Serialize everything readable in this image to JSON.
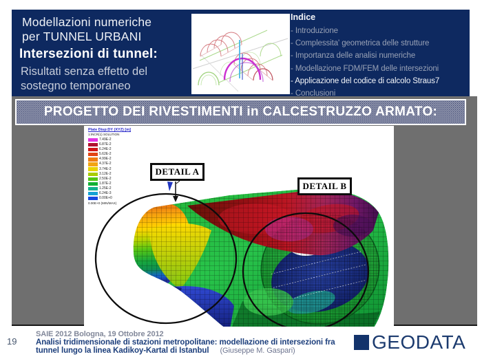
{
  "header": {
    "title1": "Modellazioni numeriche",
    "title2": "per TUNNEL URBANI",
    "subtitle": "Intersezioni di tunnel:",
    "note1": "Risultati senza effetto del",
    "note2": "sostegno temporaneo"
  },
  "indice": {
    "title": "Indice",
    "items": [
      "- Introduzione",
      "- Complessita' geometrica delle strutture",
      "- Importanza delle analisi numeriche",
      "- Modellazione FDM/FEM delle intersezioni",
      "- Applicazione del codice di calcolo Straus7",
      "- Conclusioni"
    ],
    "active_index": 4
  },
  "banner": {
    "text": "PROGETTO DEI RIVESTIMENTI in CALCESTRUZZO ARMATO:"
  },
  "figure": {
    "detail_a": "DETAIL A",
    "detail_b": "DETAIL B",
    "legend": {
      "title": "Plate Disp:DY (XYZ) [m]",
      "subtitle": "1:INCR(1) SOLUTION",
      "entries": [
        {
          "color": "#e233e2",
          "value": "7.49E-2"
        },
        {
          "color": "#b01030",
          "value": "6.87E-2"
        },
        {
          "color": "#d01418",
          "value": "6.24E-2"
        },
        {
          "color": "#e24414",
          "value": "5.62E-2"
        },
        {
          "color": "#ef7d12",
          "value": "4.99E-2"
        },
        {
          "color": "#f2a412",
          "value": "4.37E-2"
        },
        {
          "color": "#e8d400",
          "value": "3.74E-2"
        },
        {
          "color": "#a8cc00",
          "value": "3.12E-2"
        },
        {
          "color": "#52c614",
          "value": "2.50E-2"
        },
        {
          "color": "#12b034",
          "value": "1.87E-2"
        },
        {
          "color": "#12b18e",
          "value": "1.25E-2"
        },
        {
          "color": "#14a2d4",
          "value": "6.24E-3"
        },
        {
          "color": "#1648e0",
          "value": "0.00E+0"
        }
      ],
      "footnote": "0.00E+0 (MIN/MAX)"
    }
  },
  "footer": {
    "page_number": "19",
    "event": "SAIE 2012 Bologna, 19 Ottobre 2012",
    "title_line1": "Analisi tridimensionale di stazioni metropolitane: modellazione di intersezioni fra",
    "title_line2": "tunnel lungo la linea Kadikoy-Kartal di Istanbul",
    "author": "(Giuseppe M. Gaspari)",
    "logo": "GEODATA"
  },
  "colors": {
    "header_navy": "#0e2960",
    "background_gray": "#6f6f6f",
    "banner_base": "#8d93aa",
    "banner_dots": "#3d4474",
    "logo_navy": "#13336b"
  }
}
